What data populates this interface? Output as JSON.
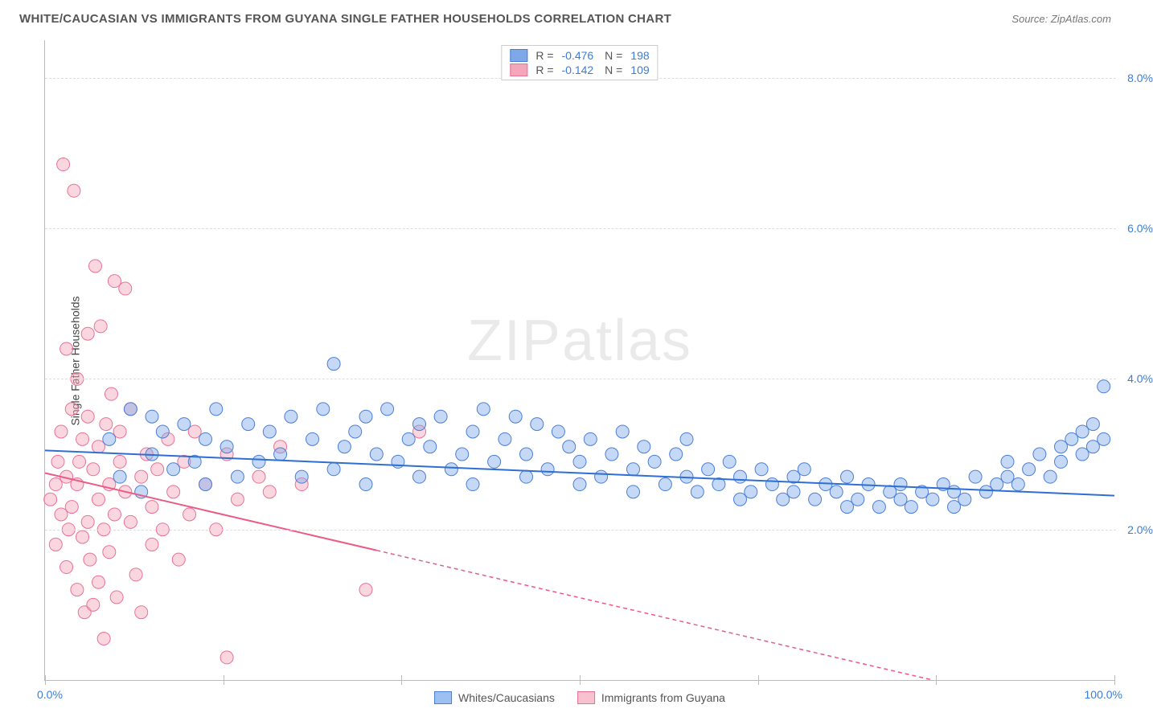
{
  "title": "WHITE/CAUCASIAN VS IMMIGRANTS FROM GUYANA SINGLE FATHER HOUSEHOLDS CORRELATION CHART",
  "source_label": "Source:",
  "source_value": "ZipAtlas.com",
  "ylabel": "Single Father Households",
  "watermark_a": "ZIP",
  "watermark_b": "atlas",
  "chart": {
    "type": "scatter",
    "xlim": [
      0,
      100
    ],
    "ylim": [
      0,
      8.5
    ],
    "xticks": [
      0,
      16.67,
      33.33,
      50,
      66.67,
      83.33,
      100
    ],
    "yticks": [
      2,
      4,
      6,
      8
    ],
    "ytick_labels": [
      "2.0%",
      "4.0%",
      "6.0%",
      "8.0%"
    ],
    "xlabel_min": "0.0%",
    "xlabel_max": "100.0%",
    "background_color": "#ffffff",
    "grid_color": "#dddddd",
    "marker_radius": 8,
    "marker_opacity": 0.45,
    "series": [
      {
        "name": "Whites/Caucasians",
        "fill_color": "#7ea8e8",
        "stroke_color": "#4b7fd6",
        "line_color": "#2e6fd1",
        "r_value": "-0.476",
        "n_value": "198",
        "trend": {
          "x1": 0,
          "y1": 3.05,
          "x2": 100,
          "y2": 2.45,
          "solid_until_x": 100
        },
        "points": [
          [
            6,
            3.2
          ],
          [
            7,
            2.7
          ],
          [
            8,
            3.6
          ],
          [
            9,
            2.5
          ],
          [
            10,
            3.0
          ],
          [
            10,
            3.5
          ],
          [
            11,
            3.3
          ],
          [
            12,
            2.8
          ],
          [
            13,
            3.4
          ],
          [
            14,
            2.9
          ],
          [
            15,
            3.2
          ],
          [
            15,
            2.6
          ],
          [
            16,
            3.6
          ],
          [
            17,
            3.1
          ],
          [
            18,
            2.7
          ],
          [
            19,
            3.4
          ],
          [
            20,
            2.9
          ],
          [
            21,
            3.3
          ],
          [
            22,
            3.0
          ],
          [
            23,
            3.5
          ],
          [
            24,
            2.7
          ],
          [
            25,
            3.2
          ],
          [
            26,
            3.6
          ],
          [
            27,
            4.2
          ],
          [
            27,
            2.8
          ],
          [
            28,
            3.1
          ],
          [
            29,
            3.3
          ],
          [
            30,
            2.6
          ],
          [
            30,
            3.5
          ],
          [
            31,
            3.0
          ],
          [
            32,
            3.6
          ],
          [
            33,
            2.9
          ],
          [
            34,
            3.2
          ],
          [
            35,
            2.7
          ],
          [
            35,
            3.4
          ],
          [
            36,
            3.1
          ],
          [
            37,
            3.5
          ],
          [
            38,
            2.8
          ],
          [
            39,
            3.0
          ],
          [
            40,
            3.3
          ],
          [
            40,
            2.6
          ],
          [
            41,
            3.6
          ],
          [
            42,
            2.9
          ],
          [
            43,
            3.2
          ],
          [
            44,
            3.5
          ],
          [
            45,
            2.7
          ],
          [
            45,
            3.0
          ],
          [
            46,
            3.4
          ],
          [
            47,
            2.8
          ],
          [
            48,
            3.3
          ],
          [
            49,
            3.1
          ],
          [
            50,
            2.9
          ],
          [
            50,
            2.6
          ],
          [
            51,
            3.2
          ],
          [
            52,
            2.7
          ],
          [
            53,
            3.0
          ],
          [
            54,
            3.3
          ],
          [
            55,
            2.8
          ],
          [
            55,
            2.5
          ],
          [
            56,
            3.1
          ],
          [
            57,
            2.9
          ],
          [
            58,
            2.6
          ],
          [
            59,
            3.0
          ],
          [
            60,
            2.7
          ],
          [
            60,
            3.2
          ],
          [
            61,
            2.5
          ],
          [
            62,
            2.8
          ],
          [
            63,
            2.6
          ],
          [
            64,
            2.9
          ],
          [
            65,
            2.4
          ],
          [
            65,
            2.7
          ],
          [
            66,
            2.5
          ],
          [
            67,
            2.8
          ],
          [
            68,
            2.6
          ],
          [
            69,
            2.4
          ],
          [
            70,
            2.7
          ],
          [
            70,
            2.5
          ],
          [
            71,
            2.8
          ],
          [
            72,
            2.4
          ],
          [
            73,
            2.6
          ],
          [
            74,
            2.5
          ],
          [
            75,
            2.3
          ],
          [
            75,
            2.7
          ],
          [
            76,
            2.4
          ],
          [
            77,
            2.6
          ],
          [
            78,
            2.3
          ],
          [
            79,
            2.5
          ],
          [
            80,
            2.4
          ],
          [
            80,
            2.6
          ],
          [
            81,
            2.3
          ],
          [
            82,
            2.5
          ],
          [
            83,
            2.4
          ],
          [
            84,
            2.6
          ],
          [
            85,
            2.3
          ],
          [
            85,
            2.5
          ],
          [
            86,
            2.4
          ],
          [
            87,
            2.7
          ],
          [
            88,
            2.5
          ],
          [
            89,
            2.6
          ],
          [
            90,
            2.7
          ],
          [
            90,
            2.9
          ],
          [
            91,
            2.6
          ],
          [
            92,
            2.8
          ],
          [
            93,
            3.0
          ],
          [
            94,
            2.7
          ],
          [
            95,
            3.1
          ],
          [
            95,
            2.9
          ],
          [
            96,
            3.2
          ],
          [
            97,
            3.0
          ],
          [
            97,
            3.3
          ],
          [
            98,
            3.1
          ],
          [
            98,
            3.4
          ],
          [
            99,
            3.9
          ],
          [
            99,
            3.2
          ]
        ]
      },
      {
        "name": "Immigrants from Guyana",
        "fill_color": "#f4a6bb",
        "stroke_color": "#e97294",
        "line_color": "#ea5b85",
        "r_value": "-0.142",
        "n_value": "109",
        "trend": {
          "x1": 0,
          "y1": 2.75,
          "x2": 83,
          "y2": 0.0,
          "solid_until_x": 31
        },
        "points": [
          [
            0.5,
            2.4
          ],
          [
            1,
            2.6
          ],
          [
            1,
            1.8
          ],
          [
            1.2,
            2.9
          ],
          [
            1.5,
            2.2
          ],
          [
            1.5,
            3.3
          ],
          [
            1.7,
            6.85
          ],
          [
            2,
            2.7
          ],
          [
            2,
            1.5
          ],
          [
            2,
            4.4
          ],
          [
            2.2,
            2.0
          ],
          [
            2.5,
            3.6
          ],
          [
            2.5,
            2.3
          ],
          [
            2.7,
            6.5
          ],
          [
            3,
            1.2
          ],
          [
            3,
            2.6
          ],
          [
            3,
            4.0
          ],
          [
            3.2,
            2.9
          ],
          [
            3.5,
            1.9
          ],
          [
            3.5,
            3.2
          ],
          [
            3.7,
            0.9
          ],
          [
            4,
            2.1
          ],
          [
            4,
            3.5
          ],
          [
            4,
            4.6
          ],
          [
            4.2,
            1.6
          ],
          [
            4.5,
            2.8
          ],
          [
            4.5,
            1.0
          ],
          [
            4.7,
            5.5
          ],
          [
            5,
            2.4
          ],
          [
            5,
            3.1
          ],
          [
            5,
            1.3
          ],
          [
            5.2,
            4.7
          ],
          [
            5.5,
            2.0
          ],
          [
            5.5,
            0.55
          ],
          [
            5.7,
            3.4
          ],
          [
            6,
            2.6
          ],
          [
            6,
            1.7
          ],
          [
            6.2,
            3.8
          ],
          [
            6.5,
            2.2
          ],
          [
            6.5,
            5.3
          ],
          [
            6.7,
            1.1
          ],
          [
            7,
            2.9
          ],
          [
            7,
            3.3
          ],
          [
            7.5,
            2.5
          ],
          [
            7.5,
            5.2
          ],
          [
            8,
            2.1
          ],
          [
            8,
            3.6
          ],
          [
            8.5,
            1.4
          ],
          [
            9,
            2.7
          ],
          [
            9,
            0.9
          ],
          [
            9.5,
            3.0
          ],
          [
            10,
            2.3
          ],
          [
            10,
            1.8
          ],
          [
            10.5,
            2.8
          ],
          [
            11,
            2.0
          ],
          [
            11.5,
            3.2
          ],
          [
            12,
            2.5
          ],
          [
            12.5,
            1.6
          ],
          [
            13,
            2.9
          ],
          [
            13.5,
            2.2
          ],
          [
            14,
            3.3
          ],
          [
            15,
            2.6
          ],
          [
            16,
            2.0
          ],
          [
            17,
            3.0
          ],
          [
            17,
            0.3
          ],
          [
            18,
            2.4
          ],
          [
            20,
            2.7
          ],
          [
            21,
            2.5
          ],
          [
            22,
            3.1
          ],
          [
            24,
            2.6
          ],
          [
            30,
            1.2
          ],
          [
            35,
            3.3
          ]
        ]
      }
    ]
  },
  "legend_bottom": [
    {
      "label": "Whites/Caucasians",
      "fill": "#9cc0f1",
      "stroke": "#4b7fd6"
    },
    {
      "label": "Immigrants from Guyana",
      "fill": "#f7c1d0",
      "stroke": "#e97294"
    }
  ]
}
